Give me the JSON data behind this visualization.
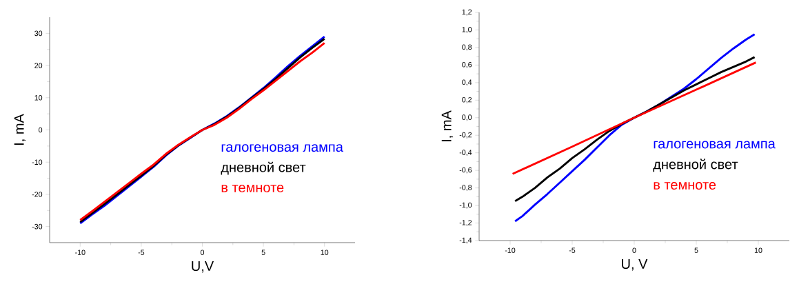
{
  "chart_data": [
    {
      "type": "line",
      "xlabel": "U,V",
      "ylabel": "I, mA",
      "xlim": [
        -12.5,
        12.5
      ],
      "ylim": [
        -35,
        35
      ],
      "xticks": [
        -10,
        -5,
        0,
        5,
        10
      ],
      "yticks": [
        -30,
        -20,
        -10,
        0,
        10,
        20,
        30
      ],
      "legend": "bottom right",
      "grid": false,
      "series": [
        {
          "name": "галогеновая лампа",
          "color": "#0000ff",
          "x": [
            -10,
            -9,
            -8,
            -7,
            -6,
            -5,
            -4,
            -3,
            -2,
            -1,
            0,
            1,
            2,
            3,
            4,
            5,
            6,
            7,
            8,
            9,
            10
          ],
          "values": [
            -29,
            -26.2,
            -23.5,
            -20.5,
            -17.5,
            -14.5,
            -11.5,
            -8,
            -5,
            -2.5,
            0,
            2,
            4.3,
            7,
            10,
            13,
            16.3,
            19.8,
            23,
            26,
            29
          ]
        },
        {
          "name": "дневной свет",
          "color": "#000000",
          "x": [
            -10,
            -9,
            -8,
            -7,
            -6,
            -5,
            -4,
            -3,
            -2,
            -1,
            0,
            1,
            2,
            3,
            4,
            5,
            6,
            7,
            8,
            9,
            10
          ],
          "values": [
            -28.6,
            -25.8,
            -23,
            -20.1,
            -17.1,
            -14.2,
            -11.2,
            -7.8,
            -4.9,
            -2.4,
            0,
            1.8,
            4.1,
            6.8,
            9.8,
            12.7,
            15.8,
            19.2,
            22.5,
            25.5,
            28.3
          ]
        },
        {
          "name": "в темноте",
          "color": "#ff0000",
          "x": [
            -10,
            -9,
            -8,
            -7,
            -6,
            -5,
            -4,
            -3,
            -2,
            -1,
            0,
            1,
            2,
            3,
            4,
            5,
            6,
            7,
            8,
            9,
            10
          ],
          "values": [
            -28,
            -25.2,
            -22.3,
            -19.4,
            -16.5,
            -13.6,
            -10.8,
            -7.5,
            -4.7,
            -2.3,
            0,
            1.6,
            3.8,
            6.5,
            9.5,
            12.3,
            15.3,
            18.3,
            21.3,
            24,
            27
          ]
        }
      ]
    },
    {
      "type": "line",
      "xlabel": "U, V",
      "ylabel": "I, mA",
      "xlim": [
        -12.5,
        12.5
      ],
      "ylim": [
        -1.4,
        1.2
      ],
      "xticks": [
        -10,
        -5,
        0,
        5,
        10
      ],
      "yticks": [
        {
          "value": -1.4,
          "label": "-1,4"
        },
        {
          "value": -1.2,
          "label": "-1,2"
        },
        {
          "value": -1.0,
          "label": "-1,0"
        },
        {
          "value": -0.8,
          "label": "-0,8"
        },
        {
          "value": -0.6,
          "label": "-0,6"
        },
        {
          "value": -0.4,
          "label": "-0,4"
        },
        {
          "value": -0.2,
          "label": "-0,2"
        },
        {
          "value": 0,
          "label": "0,0"
        },
        {
          "value": 0.2,
          "label": "0,2"
        },
        {
          "value": 0.4,
          "label": "0,4"
        },
        {
          "value": 0.6,
          "label": "0,6"
        },
        {
          "value": 0.8,
          "label": "0,8"
        },
        {
          "value": 1.0,
          "label": "1,0"
        },
        {
          "value": 1.2,
          "label": "1,2"
        }
      ],
      "legend": "bottom right",
      "grid": false,
      "series": [
        {
          "name": "галогеновая лампа",
          "color": "#0000ff",
          "x": [
            -9.6,
            -9,
            -8,
            -7,
            -6,
            -5,
            -4,
            -3,
            -2,
            -1,
            0,
            1,
            2,
            3,
            4,
            5,
            6,
            7,
            8,
            9,
            9.7
          ],
          "values": [
            -1.18,
            -1.12,
            -0.99,
            -0.87,
            -0.74,
            -0.61,
            -0.48,
            -0.34,
            -0.2,
            -0.08,
            0,
            0.07,
            0.15,
            0.24,
            0.33,
            0.44,
            0.56,
            0.68,
            0.79,
            0.89,
            0.95
          ]
        },
        {
          "name": "дневной свет",
          "color": "#000000",
          "x": [
            -9.6,
            -9,
            -8,
            -7,
            -6,
            -5,
            -4,
            -3,
            -2,
            -1,
            0,
            1,
            2,
            3,
            4,
            5,
            6,
            7,
            8,
            9,
            9.7
          ],
          "values": [
            -0.95,
            -0.9,
            -0.8,
            -0.68,
            -0.58,
            -0.46,
            -0.36,
            -0.25,
            -0.15,
            -0.07,
            0,
            0.07,
            0.15,
            0.23,
            0.31,
            0.38,
            0.45,
            0.52,
            0.58,
            0.64,
            0.69
          ]
        },
        {
          "name": "в темноте",
          "color": "#ff0000",
          "x": [
            -9.8,
            -5,
            0,
            5,
            9.8
          ],
          "values": [
            -0.64,
            -0.33,
            0,
            0.32,
            0.63
          ]
        }
      ]
    }
  ]
}
